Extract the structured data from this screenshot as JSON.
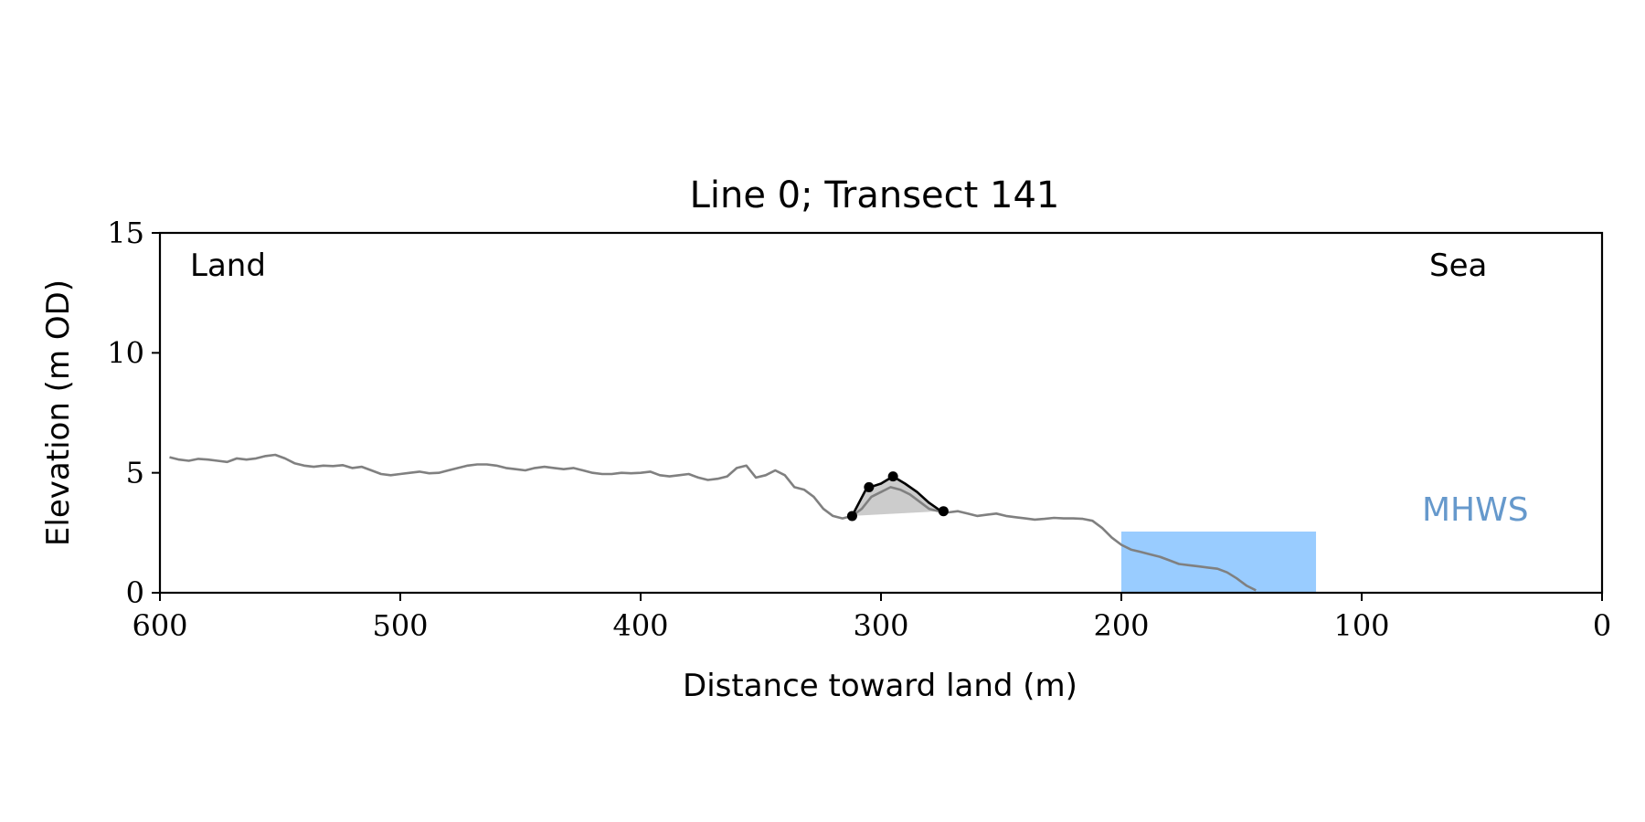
{
  "chart_data": {
    "type": "line",
    "title": "Line 0; Transect 141",
    "xlabel": "Distance toward land (m)",
    "ylabel": "Elevation (m OD)",
    "xlim": [
      600,
      0
    ],
    "ylim": [
      0,
      15
    ],
    "x_ticks": [
      600,
      500,
      400,
      300,
      200,
      100,
      0
    ],
    "y_ticks": [
      0,
      5,
      10,
      15
    ],
    "grid": false,
    "annotations": {
      "land_label": "Land",
      "sea_label": "Sea",
      "mhws_label": "MHWS"
    },
    "colors": {
      "profile": "#808080",
      "dune": "#000000",
      "dune_fill": "#cccccc",
      "water": "#99ccff",
      "mhws_text": "#6699cc"
    },
    "mhws_level": 2.55,
    "water_extent_x": [
      200,
      119
    ],
    "profile": {
      "x": [
        596,
        592,
        588,
        584,
        580,
        576,
        572,
        568,
        564,
        560,
        556,
        552,
        548,
        544,
        540,
        536,
        532,
        528,
        524,
        520,
        516,
        512,
        508,
        504,
        500,
        496,
        492,
        488,
        484,
        480,
        476,
        472,
        468,
        464,
        460,
        456,
        452,
        448,
        444,
        440,
        436,
        432,
        428,
        424,
        420,
        416,
        412,
        408,
        404,
        400,
        396,
        392,
        388,
        384,
        380,
        376,
        372,
        368,
        364,
        360,
        356,
        352,
        348,
        344,
        340,
        336,
        332,
        328,
        324,
        320,
        316,
        312,
        308,
        304,
        300,
        296,
        292,
        288,
        284,
        280,
        276,
        272,
        268,
        264,
        260,
        256,
        252,
        248,
        244,
        240,
        236,
        232,
        228,
        224,
        220,
        216,
        212,
        208,
        204,
        200,
        196,
        192,
        188,
        184,
        180,
        176,
        172,
        168,
        164,
        160,
        156,
        152,
        148,
        144
      ],
      "y": [
        5.65,
        5.55,
        5.5,
        5.58,
        5.55,
        5.5,
        5.45,
        5.6,
        5.55,
        5.6,
        5.7,
        5.75,
        5.6,
        5.4,
        5.3,
        5.25,
        5.3,
        5.28,
        5.32,
        5.2,
        5.25,
        5.1,
        4.95,
        4.9,
        4.95,
        5.0,
        5.05,
        4.98,
        5.0,
        5.1,
        5.2,
        5.3,
        5.35,
        5.35,
        5.3,
        5.2,
        5.15,
        5.1,
        5.2,
        5.25,
        5.2,
        5.15,
        5.2,
        5.1,
        5.0,
        4.95,
        4.95,
        5.0,
        4.98,
        5.0,
        5.05,
        4.9,
        4.85,
        4.9,
        4.95,
        4.8,
        4.7,
        4.75,
        4.85,
        5.2,
        5.3,
        4.8,
        4.9,
        5.1,
        4.9,
        4.4,
        4.3,
        4.0,
        3.5,
        3.2,
        3.1,
        3.2,
        3.5,
        4.0,
        4.2,
        4.4,
        4.3,
        4.1,
        3.8,
        3.5,
        3.4,
        3.35,
        3.4,
        3.3,
        3.2,
        3.25,
        3.3,
        3.2,
        3.15,
        3.1,
        3.05,
        3.08,
        3.12,
        3.1,
        3.1,
        3.08,
        3.0,
        2.7,
        2.3,
        2.0,
        1.8,
        1.7,
        1.6,
        1.5,
        1.35,
        1.2,
        1.15,
        1.1,
        1.05,
        1.0,
        0.85,
        0.6,
        0.3,
        0.1
      ]
    },
    "dune": {
      "x": [
        312,
        306,
        300,
        295,
        290,
        285,
        280,
        275
      ],
      "y": [
        3.2,
        4.35,
        4.55,
        4.85,
        4.55,
        4.2,
        3.75,
        3.4
      ]
    },
    "dune_points": {
      "x": [
        312,
        305,
        295,
        274
      ],
      "y": [
        3.2,
        4.4,
        4.85,
        3.4
      ]
    }
  }
}
